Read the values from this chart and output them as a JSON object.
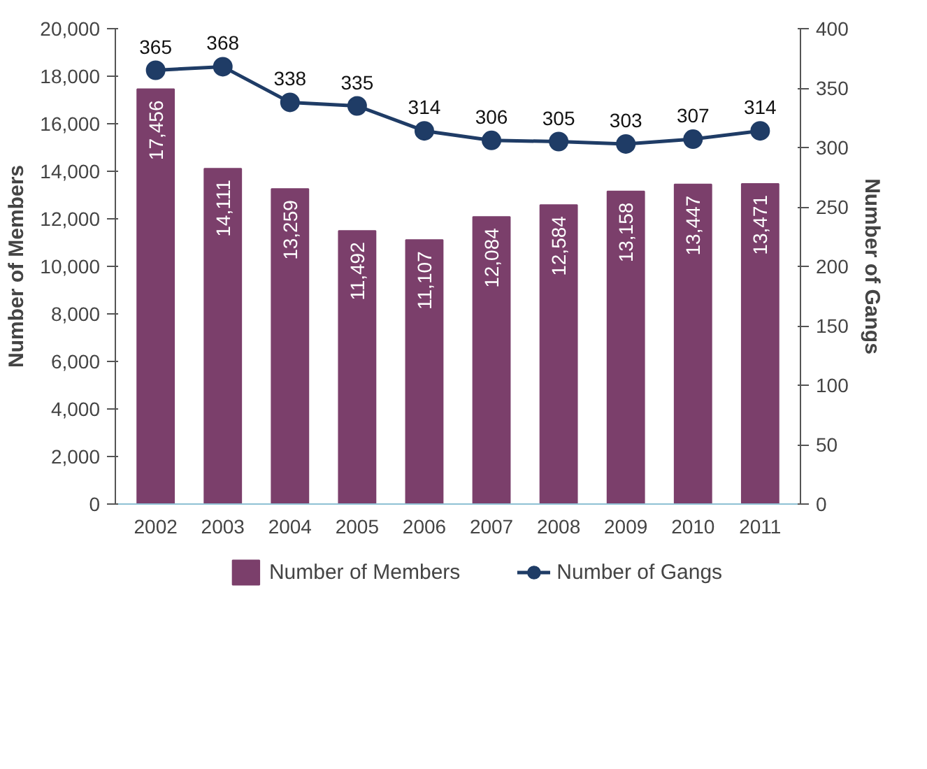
{
  "chart_data": {
    "type": "bar",
    "categories": [
      "2002",
      "2003",
      "2004",
      "2005",
      "2006",
      "2007",
      "2008",
      "2009",
      "2010",
      "2011"
    ],
    "series": [
      {
        "name": "Number of Members",
        "color": "#7b3f6b",
        "values": [
          17456,
          14111,
          13259,
          11492,
          11107,
          12084,
          12584,
          13158,
          13447,
          13471
        ],
        "value_labels": [
          "17,456",
          "14,111",
          "13,259",
          "11,492",
          "11,107",
          "12,084",
          "12,584",
          "13,158",
          "13,447",
          "13,471"
        ]
      },
      {
        "name": "Number of Gangs",
        "color": "#1f3c66",
        "type": "line",
        "axis": "y2",
        "marker": "circle",
        "values": [
          365,
          368,
          338,
          335,
          314,
          306,
          305,
          303,
          307,
          314
        ],
        "value_labels": [
          "365",
          "368",
          "338",
          "335",
          "314",
          "306",
          "305",
          "303",
          "307",
          "314"
        ]
      }
    ],
    "ylabel": "Number of Members",
    "y2label": "Number of Gangs",
    "ylim": [
      0,
      20000
    ],
    "yticks": [
      0,
      {
        "value": 2000,
        "label": "2,000"
      },
      {
        "value": 4000,
        "label": "4,000"
      },
      {
        "value": 6000,
        "label": "6,000"
      },
      {
        "value": 8000,
        "label": "8,000"
      },
      {
        "value": 10000,
        "label": "10,000"
      },
      {
        "value": 12000,
        "label": "12,000"
      },
      {
        "value": 14000,
        "label": "14,000"
      },
      {
        "value": 16000,
        "label": "16,000"
      },
      {
        "value": 18000,
        "label": "18,000"
      },
      {
        "value": 20000,
        "label": "20,000"
      }
    ],
    "y2lim": [
      0,
      400
    ],
    "y2ticks": [
      0,
      50,
      100,
      150,
      200,
      250,
      300,
      350,
      400
    ],
    "grid": false,
    "legend": "bottom"
  }
}
